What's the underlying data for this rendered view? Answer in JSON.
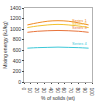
{
  "chart_data": {
    "type": "line",
    "x_label": "% of solids (wt)",
    "y_label": "Mixing energy (kJ/kg)",
    "x": [
      5,
      20,
      35,
      50,
      65,
      80,
      95
    ],
    "series": [
      {
        "name": "Series 1",
        "color": "#f08a24",
        "values": [
          1080,
          1120,
          1150,
          1160,
          1150,
          1120,
          1080
        ]
      },
      {
        "name": "Series 2",
        "color": "#f2c12e",
        "values": [
          1030,
          1060,
          1080,
          1090,
          1080,
          1060,
          1030
        ]
      },
      {
        "name": "Series 3",
        "color": "#e8743b",
        "values": [
          940,
          960,
          970,
          975,
          970,
          960,
          940
        ]
      },
      {
        "name": "Series 4",
        "color": "#3cc8d8",
        "values": [
          640,
          650,
          655,
          660,
          655,
          650,
          640
        ]
      }
    ],
    "xlim": [
      0,
      100
    ],
    "xticks": [
      0,
      10,
      20,
      30,
      40,
      50,
      60,
      70,
      80,
      90,
      100
    ],
    "ylim": [
      0,
      1400
    ],
    "yticks": [
      0,
      200,
      400,
      600,
      800,
      1000,
      1200,
      1400
    ],
    "grid": false
  }
}
